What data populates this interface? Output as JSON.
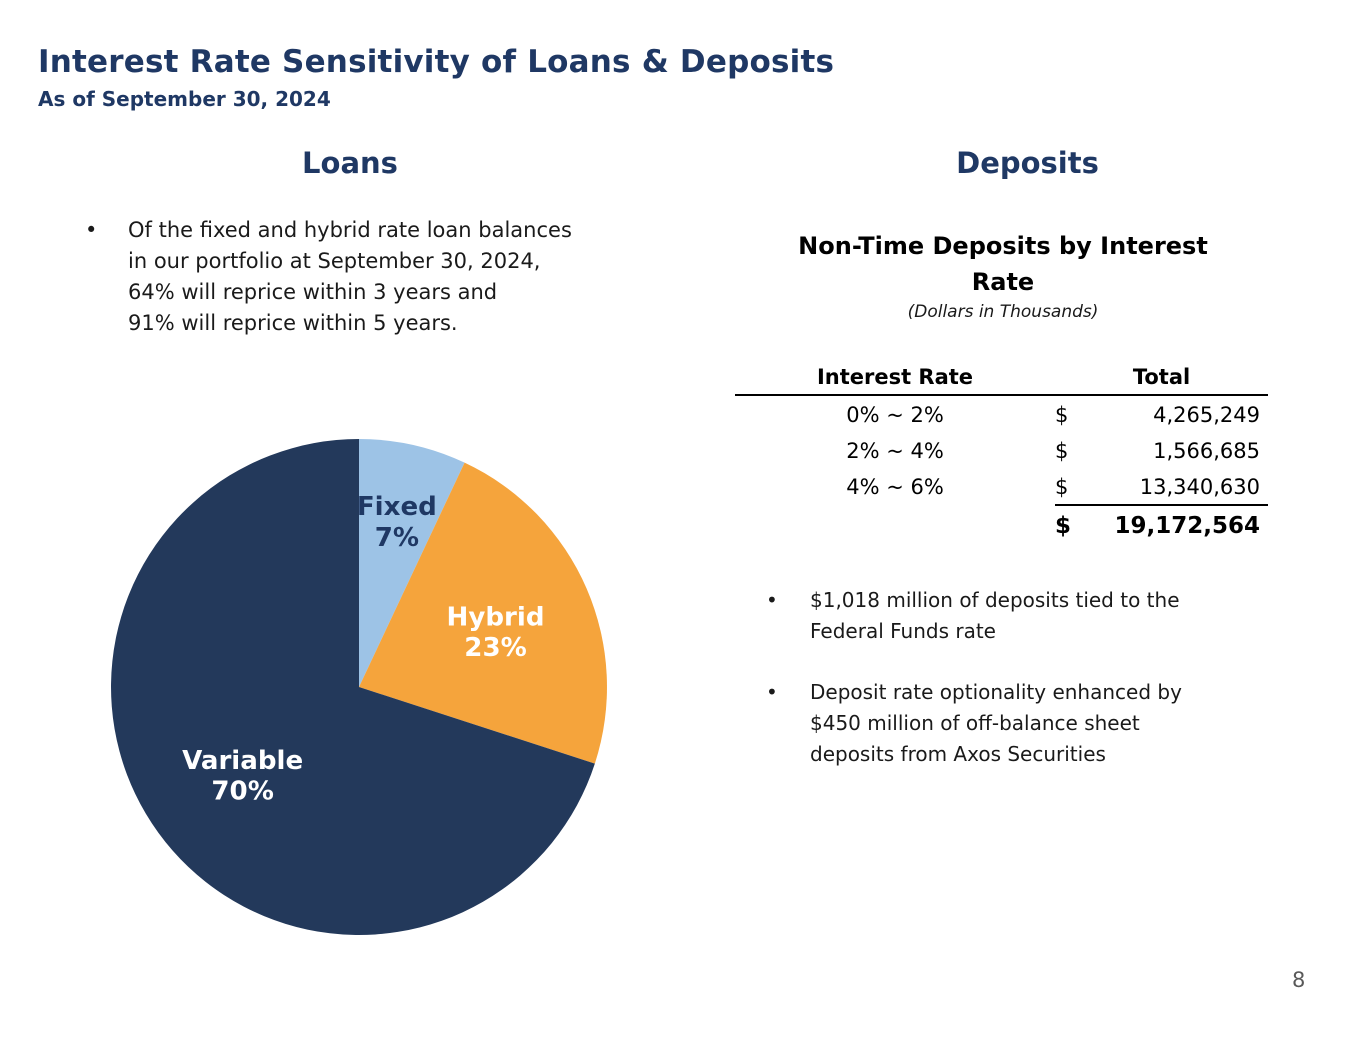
{
  "slide": {
    "title": "Interest Rate Sensitivity of Loans & Deposits",
    "subtitle": "As of September 30, 2024",
    "page_number": "8"
  },
  "loans": {
    "heading": "Loans",
    "bullet": "Of the fixed and hybrid rate loan balances\nin our portfolio at September 30, 2024,\n64% will reprice within 3 years and\n91% will reprice within 5 years."
  },
  "deposits": {
    "heading": "Deposits",
    "table_title": "Non-Time Deposits by Interest\nRate",
    "table_subtitle": "(Dollars in Thousands)",
    "table": {
      "headers": [
        "Interest Rate",
        "Total"
      ],
      "rows": [
        {
          "rate": "0% ~ 2%",
          "currency": "$",
          "amount": "4,265,249"
        },
        {
          "rate": "2% ~ 4%",
          "currency": "$",
          "amount": "1,566,685"
        },
        {
          "rate": "4% ~ 6%",
          "currency": "$",
          "amount": "13,340,630"
        }
      ],
      "total": {
        "currency": "$",
        "amount": "19,172,564"
      }
    },
    "bullets": [
      "$1,018 million of deposits tied to the\nFederal Funds rate",
      "Deposit rate optionality enhanced by\n$450 million of off-balance sheet\ndeposits from Axos Securities"
    ]
  },
  "chart_data": {
    "type": "pie",
    "legend": "none",
    "start_angle_deg": -90,
    "direction": "clockwise",
    "slices": [
      {
        "label": "Fixed",
        "pct": 7,
        "color": "#9dc3e6",
        "label_color": "#1f3864",
        "label_r": 0.7
      },
      {
        "label": "Hybrid",
        "pct": 23,
        "color": "#f5a43c",
        "label_color": "#ffffff",
        "label_r": 0.6
      },
      {
        "label": "Variable",
        "pct": 70,
        "color": "#23395b",
        "label_color": "#ffffff",
        "label_r": 0.58
      }
    ]
  },
  "colors": {
    "heading_navy": "#1f3864",
    "body_text": "#1a1a1a",
    "page_number_gray": "#595959"
  }
}
